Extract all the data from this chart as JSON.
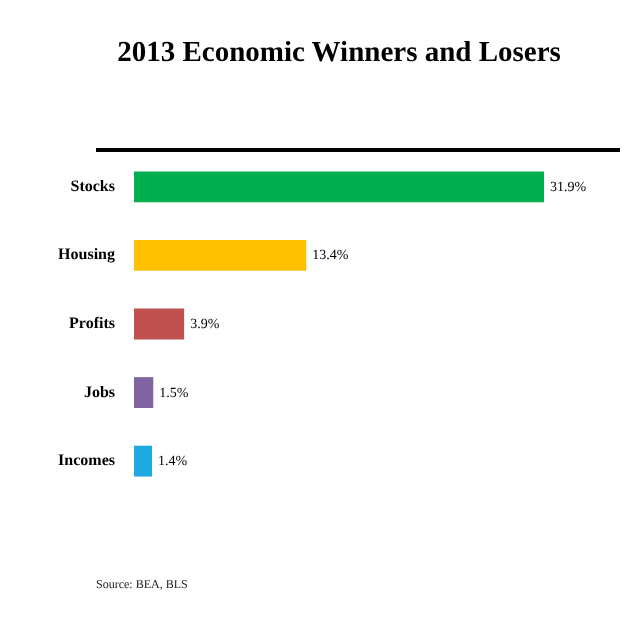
{
  "chart_data": {
    "type": "bar",
    "orientation": "horizontal",
    "title": "2013 Economic Winners and Losers",
    "categories": [
      "Stocks",
      "Housing",
      "Profits",
      "Jobs",
      "Incomes"
    ],
    "values": [
      31.9,
      13.4,
      3.9,
      1.5,
      1.4
    ],
    "colors": [
      "#00b050",
      "#ffc000",
      "#c0504d",
      "#8064a2",
      "#1fa9e1"
    ],
    "value_labels": [
      "31.9%",
      "13.4%",
      "3.9%",
      "1.5%",
      "1.4%"
    ],
    "annotations": [
      "Source: BEA, BLS"
    ]
  }
}
